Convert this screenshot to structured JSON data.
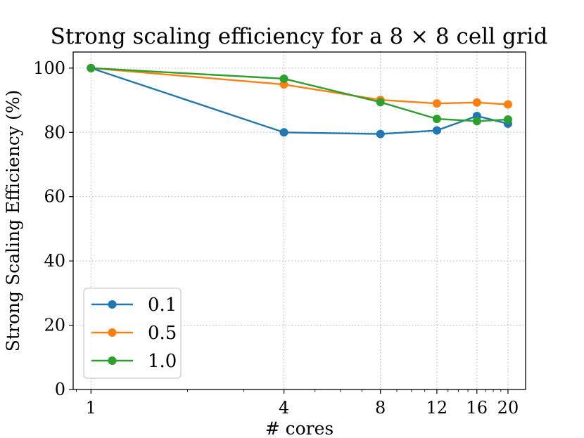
{
  "chart_data": {
    "type": "line",
    "title": "Strong scaling efficiency for a 8 × 8 cell grid",
    "xlabel": "# cores",
    "ylabel": "Strong Scaling Efficiency (%)",
    "xscale": "log",
    "x": [
      1,
      4,
      8,
      12,
      16,
      20
    ],
    "x_tick_labels": [
      "1",
      "4",
      "8",
      "12",
      "16",
      "20"
    ],
    "ylim": [
      0,
      105
    ],
    "y_ticks": [
      0,
      20,
      40,
      60,
      80,
      100
    ],
    "y_tick_labels": [
      "0",
      "20",
      "40",
      "60",
      "80",
      "100"
    ],
    "grid": true,
    "legend_position": "lower-left",
    "series": [
      {
        "name": "0.1",
        "color": "#1f77b4",
        "values": [
          100,
          80.0,
          79.5,
          80.6,
          85.1,
          82.7
        ]
      },
      {
        "name": "0.5",
        "color": "#ff7f0e",
        "values": [
          100,
          94.9,
          90.1,
          89.0,
          89.3,
          88.7
        ]
      },
      {
        "name": "1.0",
        "color": "#2ca02c",
        "values": [
          100,
          96.7,
          89.4,
          84.2,
          83.5,
          84.0
        ]
      }
    ]
  }
}
